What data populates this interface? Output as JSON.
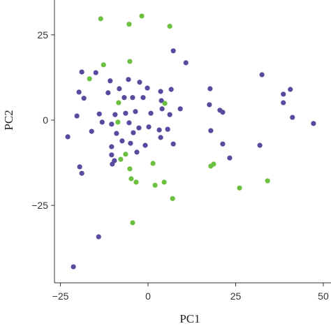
{
  "chart_data": {
    "type": "scatter",
    "x_label": "PC1",
    "y_label": "PC2",
    "xlim": [
      -26.7,
      52.2
    ],
    "ylim": [
      -47.7,
      35.2
    ],
    "xticks": [
      {
        "value": -25,
        "label": "−25"
      },
      0,
      25,
      50
    ],
    "yticks": [
      {
        "value": -25,
        "label": "−25"
      },
      0,
      25
    ],
    "series": [
      {
        "color": "#5a4a9f",
        "x": [
          7.2,
          10.8,
          -18.9,
          -10.8,
          -14.9,
          -5.6,
          -2.4,
          -0.2,
          6.6,
          3.6,
          -19.7,
          -11.4,
          -6.8,
          -4.4,
          -1.4,
          3.8,
          -18.3,
          9.2,
          -13.9,
          -9.4,
          -6.4,
          -3.6,
          0.8,
          4.0,
          6.2,
          -20.3,
          -13.1,
          -10.4,
          -5.4,
          -2.6,
          0.2,
          3.2,
          5.6,
          -16.1,
          -9.0,
          -4.2,
          -22.9,
          -0.8,
          -10.4,
          -7.4,
          -5.0,
          3.6,
          7.2,
          -10.4,
          -9.6,
          -10.2,
          -3.2,
          -19.5,
          -18.9,
          17.7,
          17.5,
          20.5,
          21.3,
          17.9,
          21.3,
          23.3,
          32.5,
          38.6,
          40.6,
          38.6,
          41.2,
          47.2,
          31.9,
          -14.1,
          -21.3,
          -8.2
        ],
        "values": [
          20.3,
          16.8,
          14.1,
          11.5,
          13.9,
          11.9,
          11.1,
          9.4,
          9.0,
          8.4,
          8.2,
          8.0,
          6.6,
          6.6,
          6.6,
          5.7,
          6.4,
          3.3,
          1.8,
          1.6,
          2.0,
          2.5,
          2.0,
          3.3,
          1.6,
          1.2,
          -0.6,
          -1.2,
          -0.8,
          -2.3,
          -2.0,
          -2.9,
          -2.7,
          -3.3,
          -3.9,
          -3.7,
          -4.9,
          -7.4,
          -7.8,
          -6.1,
          -6.8,
          -5.1,
          -7.0,
          -10.2,
          -11.9,
          -12.9,
          -9.4,
          -13.7,
          -15.6,
          9.2,
          4.5,
          2.9,
          2.3,
          -3.1,
          -7.0,
          -11.1,
          13.3,
          7.6,
          9.0,
          5.1,
          0.8,
          -1.0,
          -7.4,
          -34.2,
          -43.0,
          9.2
        ]
      },
      {
        "color": "#6cc03f",
        "x": [
          -13.5,
          -1.8,
          -5.4,
          6.2,
          -12.7,
          -5.2,
          -16.7,
          -8.4,
          4.8,
          -8.6,
          -6.4,
          -7.8,
          -5.2,
          1.4,
          -4.8,
          -3.4,
          2.0,
          4.6,
          7.0,
          -4.4,
          17.9,
          18.7,
          26.1,
          34.1
        ],
        "values": [
          29.7,
          30.5,
          28.1,
          27.5,
          16.2,
          17.2,
          12.1,
          5.1,
          4.9,
          -0.6,
          -10.0,
          -11.5,
          -14.3,
          -12.7,
          -17.2,
          -18.2,
          -19.1,
          -18.2,
          -23.0,
          -30.1,
          -13.5,
          -12.9,
          -19.9,
          -17.8
        ]
      }
    ]
  }
}
